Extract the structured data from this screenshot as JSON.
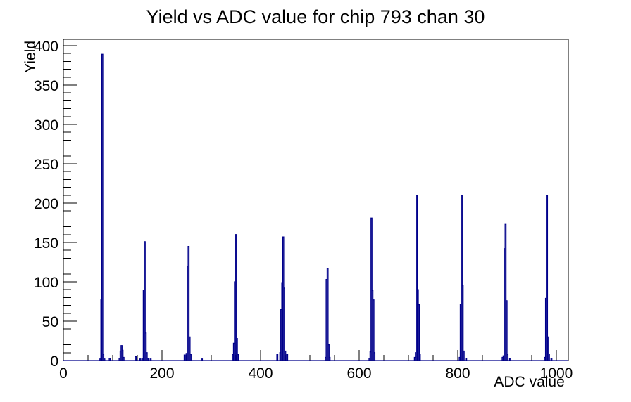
{
  "page": {
    "background": "#ffffff",
    "text_color": "#000000"
  },
  "chart_data": {
    "type": "line",
    "style": "histogram-step",
    "title": "Yield vs ADC value for chip 793 chan 30",
    "xlabel": "ADC value",
    "ylabel": "Yield",
    "xlim": [
      0,
      1024
    ],
    "ylim": [
      0,
      408
    ],
    "x_major_ticks": [
      0,
      200,
      400,
      600,
      800,
      1000
    ],
    "x_minor_step": 50,
    "y_major_ticks": [
      0,
      50,
      100,
      150,
      200,
      250,
      300,
      350,
      400
    ],
    "y_minor_step": 10,
    "grid": false,
    "legend": false,
    "line_color": "#00008b",
    "frame_color": "#000000",
    "peak_summary": {
      "peak_adc_positions": [
        79,
        117,
        164,
        253,
        349,
        445,
        535,
        624,
        716,
        807,
        896,
        980
      ],
      "peak_heights": [
        389,
        19,
        151,
        145,
        160,
        157,
        117,
        181,
        210,
        210,
        173,
        210
      ]
    },
    "series": [
      {
        "name": "yield",
        "bins": [
          [
            74,
            2,
            2
          ],
          [
            76,
            2,
            77
          ],
          [
            78,
            2,
            389
          ],
          [
            80,
            2,
            8
          ],
          [
            82,
            2,
            2
          ],
          [
            93,
            2,
            3
          ],
          [
            113,
            2,
            3
          ],
          [
            115,
            2,
            12
          ],
          [
            117,
            2,
            19
          ],
          [
            119,
            2,
            13
          ],
          [
            121,
            2,
            4
          ],
          [
            146,
            2,
            5
          ],
          [
            155,
            2,
            2
          ],
          [
            160,
            2,
            2
          ],
          [
            162,
            2,
            89
          ],
          [
            164,
            2,
            151
          ],
          [
            166,
            2,
            35
          ],
          [
            168,
            2,
            10
          ],
          [
            170,
            2,
            3
          ],
          [
            176,
            2,
            2
          ],
          [
            245,
            2,
            7
          ],
          [
            249,
            2,
            9
          ],
          [
            251,
            2,
            120
          ],
          [
            253,
            2,
            145
          ],
          [
            255,
            2,
            30
          ],
          [
            257,
            2,
            8
          ],
          [
            280,
            2,
            2
          ],
          [
            343,
            2,
            8
          ],
          [
            345,
            2,
            22
          ],
          [
            347,
            2,
            100
          ],
          [
            349,
            2,
            160
          ],
          [
            351,
            2,
            28
          ],
          [
            353,
            2,
            8
          ],
          [
            433,
            2,
            8
          ],
          [
            439,
            2,
            10
          ],
          [
            441,
            2,
            65
          ],
          [
            443,
            2,
            99
          ],
          [
            445,
            2,
            157
          ],
          [
            447,
            2,
            92
          ],
          [
            449,
            2,
            12
          ],
          [
            453,
            2,
            8
          ],
          [
            531,
            2,
            4
          ],
          [
            533,
            2,
            103
          ],
          [
            535,
            2,
            117
          ],
          [
            537,
            2,
            20
          ],
          [
            539,
            2,
            4
          ],
          [
            620,
            2,
            3
          ],
          [
            622,
            2,
            11
          ],
          [
            624,
            2,
            181
          ],
          [
            626,
            2,
            89
          ],
          [
            628,
            2,
            77
          ],
          [
            630,
            2,
            10
          ],
          [
            712,
            2,
            4
          ],
          [
            714,
            2,
            10
          ],
          [
            716,
            2,
            210
          ],
          [
            718,
            2,
            90
          ],
          [
            720,
            2,
            71
          ],
          [
            722,
            2,
            8
          ],
          [
            803,
            2,
            4
          ],
          [
            805,
            2,
            71
          ],
          [
            807,
            2,
            210
          ],
          [
            809,
            2,
            95
          ],
          [
            811,
            2,
            12
          ],
          [
            816,
            2,
            3
          ],
          [
            890,
            2,
            4
          ],
          [
            892,
            2,
            6
          ],
          [
            894,
            2,
            142
          ],
          [
            896,
            2,
            173
          ],
          [
            898,
            2,
            76
          ],
          [
            900,
            2,
            8
          ],
          [
            905,
            2,
            3
          ],
          [
            976,
            2,
            4
          ],
          [
            978,
            2,
            79
          ],
          [
            980,
            2,
            210
          ],
          [
            982,
            2,
            30
          ],
          [
            984,
            2,
            8
          ],
          [
            989,
            2,
            3
          ]
        ]
      }
    ]
  }
}
